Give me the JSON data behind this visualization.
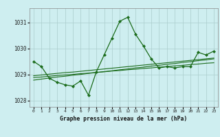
{
  "hours": [
    0,
    1,
    2,
    3,
    4,
    5,
    6,
    7,
    8,
    9,
    10,
    11,
    12,
    13,
    14,
    15,
    16,
    17,
    18,
    19,
    20,
    21,
    22,
    23
  ],
  "main_line": [
    1029.5,
    1029.3,
    1028.85,
    1028.7,
    1028.6,
    1028.55,
    1028.75,
    1028.2,
    1029.1,
    1029.75,
    1030.4,
    1031.05,
    1031.2,
    1030.55,
    1030.1,
    1029.6,
    1029.25,
    1029.3,
    1029.25,
    1029.3,
    1029.3,
    1029.85,
    1029.75,
    1029.9
  ],
  "trend_line1": [
    1028.88,
    1028.9,
    1028.93,
    1028.96,
    1028.98,
    1029.0,
    1029.03,
    1029.05,
    1029.08,
    1029.1,
    1029.13,
    1029.15,
    1029.18,
    1029.2,
    1029.23,
    1029.25,
    1029.28,
    1029.3,
    1029.33,
    1029.35,
    1029.38,
    1029.4,
    1029.43,
    1029.45
  ],
  "trend_line2": [
    1028.78,
    1028.82,
    1028.86,
    1028.9,
    1028.93,
    1028.97,
    1029.0,
    1029.04,
    1029.07,
    1029.11,
    1029.14,
    1029.18,
    1029.21,
    1029.25,
    1029.28,
    1029.32,
    1029.35,
    1029.39,
    1029.42,
    1029.46,
    1029.49,
    1029.53,
    1029.56,
    1029.6
  ],
  "trend_line3": [
    1028.95,
    1028.98,
    1029.01,
    1029.04,
    1029.07,
    1029.09,
    1029.12,
    1029.15,
    1029.18,
    1029.21,
    1029.24,
    1029.27,
    1029.3,
    1029.33,
    1029.36,
    1029.39,
    1029.42,
    1029.45,
    1029.48,
    1029.51,
    1029.54,
    1029.57,
    1029.6,
    1029.63
  ],
  "bg_color": "#ceeef0",
  "line_color": "#1a6b1a",
  "grid_color": "#aacccc",
  "ylabel_ticks": [
    1028,
    1029,
    1030,
    1031
  ],
  "xlabel_ticks": [
    0,
    1,
    2,
    3,
    4,
    5,
    6,
    7,
    8,
    9,
    10,
    11,
    12,
    13,
    14,
    15,
    16,
    17,
    18,
    19,
    20,
    21,
    22,
    23
  ],
  "xlabel_label": "Graphe pression niveau de la mer (hPa)",
  "ylim": [
    1027.75,
    1031.55
  ],
  "xlim": [
    -0.5,
    23.5
  ]
}
